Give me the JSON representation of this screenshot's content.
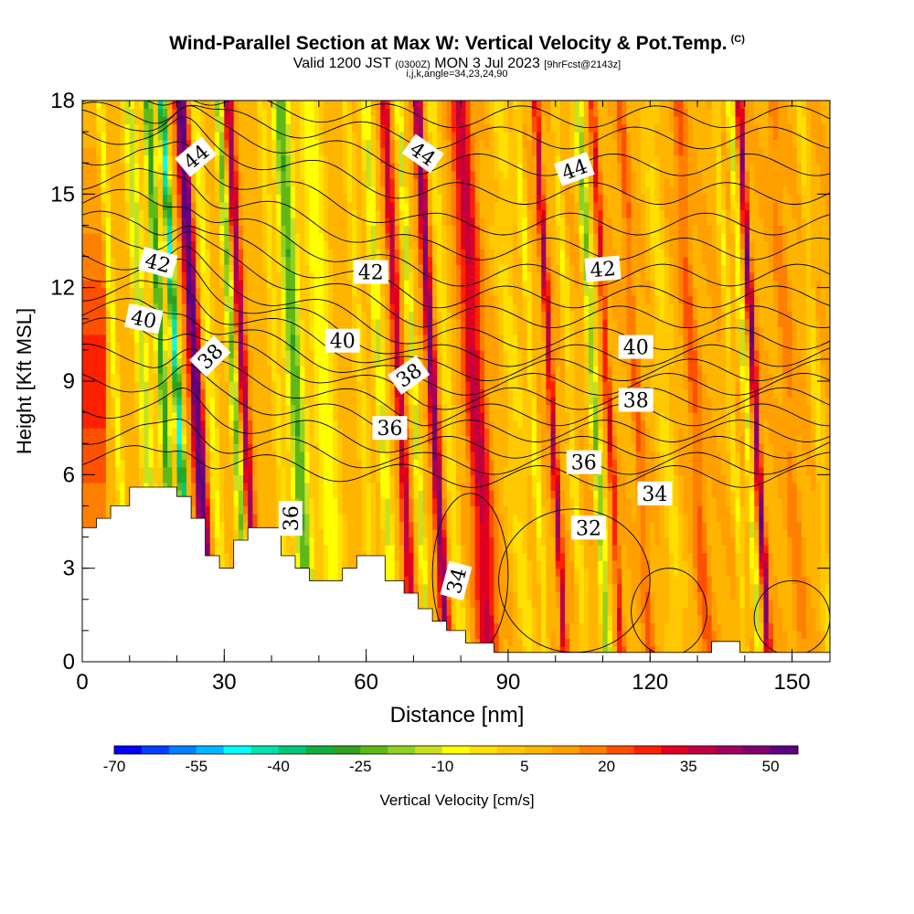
{
  "header": {
    "title": "Wind-Parallel Section at Max W: Vertical Velocity & Pot.Temp.",
    "copyright": "(C)",
    "valid_prefix": "Valid 1200 JST",
    "valid_utc": "(0300Z)",
    "valid_date": "MON 3 Jul 2023",
    "forecast": "[9hrFcst@2143z]",
    "params": "i,j,k,angle=34,23,24,90"
  },
  "chart_data": {
    "type": "heatmap",
    "xlabel": "Distance [nm]",
    "ylabel": "Height [Kft MSL]",
    "xlim": [
      0,
      158
    ],
    "ylim": [
      0,
      18
    ],
    "xticks": [
      0,
      30,
      60,
      90,
      120,
      150
    ],
    "yticks": [
      0,
      3,
      6,
      9,
      12,
      15,
      18
    ],
    "colorbar": {
      "label": "Vertical Velocity [cm/s]",
      "min": -70,
      "max": 55,
      "step": 5,
      "ticks": [
        -70,
        -55,
        -40,
        -25,
        -10,
        5,
        20,
        35,
        50
      ],
      "colors": [
        "#0000ff",
        "#0040ff",
        "#0080ff",
        "#00b8ff",
        "#00ffff",
        "#00e0b0",
        "#00c878",
        "#10b040",
        "#30a020",
        "#60b818",
        "#90d020",
        "#c8e020",
        "#ffff00",
        "#ffe000",
        "#ffc800",
        "#ffb400",
        "#ffa000",
        "#ff8000",
        "#ff5000",
        "#ff2000",
        "#e00020",
        "#c00040",
        "#a00060",
        "#800070",
        "#600080"
      ]
    },
    "terrain": [
      [
        0,
        4.3
      ],
      [
        3,
        4.3
      ],
      [
        3,
        4.6
      ],
      [
        6,
        4.6
      ],
      [
        6,
        5.0
      ],
      [
        10,
        5.0
      ],
      [
        10,
        5.6
      ],
      [
        20,
        5.6
      ],
      [
        20,
        5.3
      ],
      [
        23,
        5.3
      ],
      [
        23,
        4.6
      ],
      [
        26,
        4.6
      ],
      [
        26,
        3.4
      ],
      [
        29,
        3.4
      ],
      [
        29,
        3.0
      ],
      [
        32,
        3.0
      ],
      [
        32,
        3.9
      ],
      [
        35,
        3.9
      ],
      [
        35,
        4.3
      ],
      [
        42,
        4.3
      ],
      [
        42,
        3.4
      ],
      [
        45,
        3.4
      ],
      [
        45,
        3.0
      ],
      [
        48,
        3.0
      ],
      [
        48,
        2.6
      ],
      [
        55,
        2.6
      ],
      [
        55,
        3.0
      ],
      [
        58,
        3.0
      ],
      [
        58,
        3.4
      ],
      [
        64,
        3.4
      ],
      [
        64,
        2.6
      ],
      [
        68,
        2.6
      ],
      [
        68,
        2.2
      ],
      [
        71,
        2.2
      ],
      [
        71,
        1.7
      ],
      [
        74,
        1.7
      ],
      [
        74,
        1.3
      ],
      [
        77,
        1.3
      ],
      [
        77,
        1.0
      ],
      [
        81,
        1.0
      ],
      [
        81,
        0.6
      ],
      [
        87,
        0.6
      ],
      [
        87,
        0.3
      ],
      [
        133,
        0.3
      ],
      [
        133,
        0.65
      ],
      [
        139,
        0.65
      ],
      [
        139,
        0.3
      ],
      [
        158,
        0.3
      ],
      [
        158,
        0
      ]
    ],
    "theta_labels": [
      {
        "text": "44",
        "x": 24,
        "y": 16.2,
        "rot": -40
      },
      {
        "text": "44",
        "x": 72,
        "y": 16.3,
        "rot": 35
      },
      {
        "text": "44",
        "x": 104,
        "y": 15.8,
        "rot": -20
      },
      {
        "text": "42",
        "x": 16,
        "y": 12.8,
        "rot": 15
      },
      {
        "text": "42",
        "x": 61,
        "y": 12.5,
        "rot": 0
      },
      {
        "text": "42",
        "x": 110,
        "y": 12.6,
        "rot": -5
      },
      {
        "text": "40",
        "x": 13,
        "y": 11.0,
        "rot": 12
      },
      {
        "text": "40",
        "x": 55,
        "y": 10.3,
        "rot": 0
      },
      {
        "text": "40",
        "x": 117,
        "y": 10.1,
        "rot": 0
      },
      {
        "text": "38",
        "x": 27,
        "y": 9.8,
        "rot": -45
      },
      {
        "text": "38",
        "x": 69,
        "y": 9.2,
        "rot": -35
      },
      {
        "text": "38",
        "x": 117,
        "y": 8.4,
        "rot": 0
      },
      {
        "text": "36",
        "x": 65,
        "y": 7.5,
        "rot": 0
      },
      {
        "text": "36",
        "x": 106,
        "y": 6.4,
        "rot": 0
      },
      {
        "text": "36",
        "x": 44,
        "y": 4.6,
        "rot": -90
      },
      {
        "text": "34",
        "x": 121,
        "y": 5.4,
        "rot": 0
      },
      {
        "text": "34",
        "x": 79,
        "y": 2.6,
        "rot": -75
      },
      {
        "text": "32",
        "x": 107,
        "y": 4.3,
        "rot": 0
      }
    ]
  }
}
